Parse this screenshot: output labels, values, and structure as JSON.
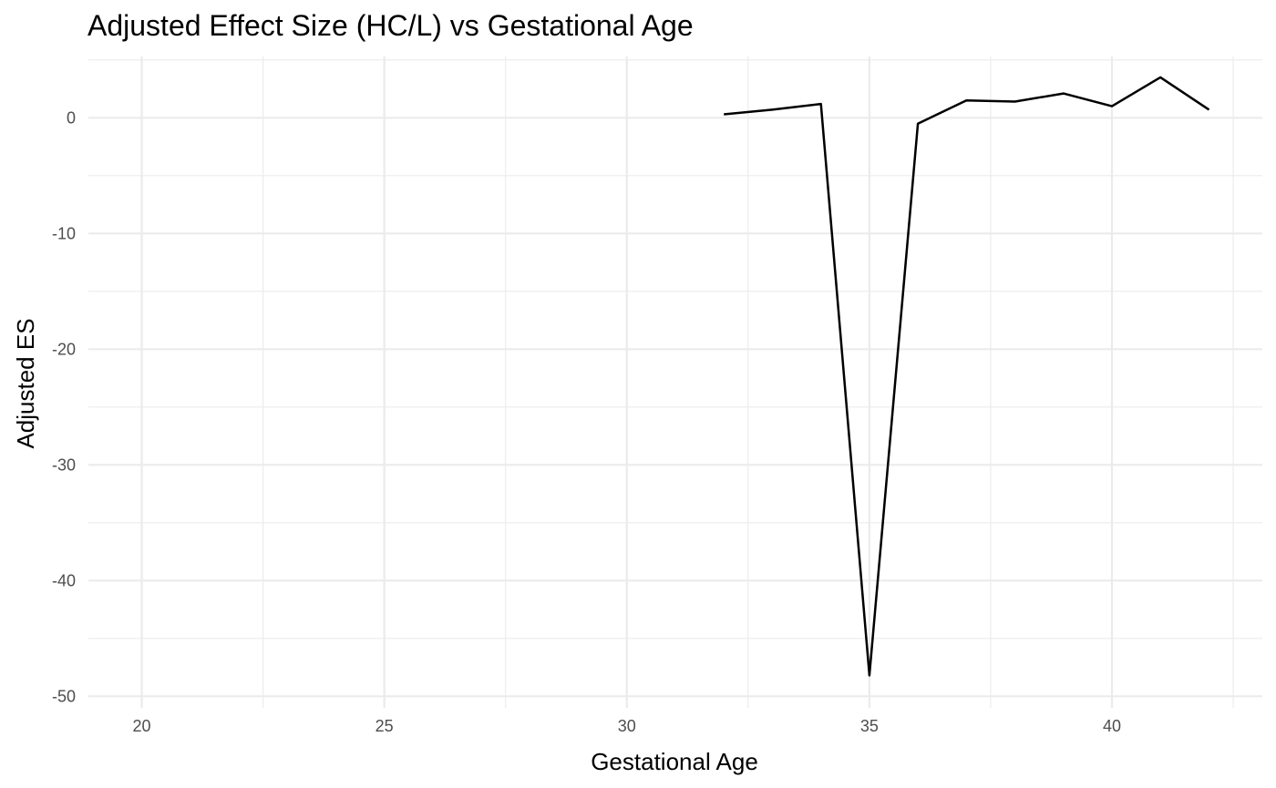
{
  "chart_data": {
    "type": "line",
    "title": "Adjusted Effect Size (HC/L) vs Gestational Age",
    "xlabel": "Gestational Age",
    "ylabel": "Adjusted ES",
    "xlim": [
      18.9,
      43.1
    ],
    "ylim": [
      -51,
      5.3
    ],
    "x_ticks": [
      20,
      25,
      30,
      35,
      40
    ],
    "x_tick_labels": [
      "20",
      "25",
      "30",
      "35",
      "40"
    ],
    "x_minor_ticks": [
      22.5,
      27.5,
      32.5,
      37.5,
      42.5
    ],
    "y_ticks": [
      -50,
      -40,
      -30,
      -20,
      -10,
      0
    ],
    "y_tick_labels": [
      "-50",
      "-40",
      "-30",
      "-20",
      "-10",
      "0"
    ],
    "y_minor_ticks": [
      -45,
      -35,
      -25,
      -15,
      -5,
      5
    ],
    "grid": true,
    "legend": "none",
    "series": [
      {
        "color": "#000000",
        "x": [
          32,
          33,
          34,
          35,
          36,
          37,
          38,
          39,
          40,
          41,
          42
        ],
        "y": [
          0.3,
          0.7,
          1.2,
          -48.2,
          -0.5,
          1.5,
          1.4,
          2.1,
          1.0,
          3.5,
          0.7
        ]
      }
    ]
  }
}
